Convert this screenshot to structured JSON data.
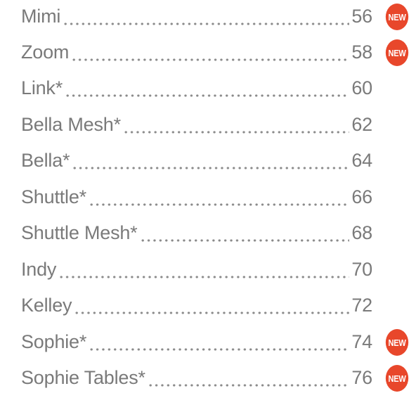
{
  "toc": {
    "badge_label": "NEW",
    "badge_color": "#e8472b",
    "text_color": "#7a7a7a",
    "entries": [
      {
        "name": "Mimi",
        "page": "56",
        "is_new": true
      },
      {
        "name": "Zoom",
        "page": "58",
        "is_new": true
      },
      {
        "name": "Link*",
        "page": "60",
        "is_new": false
      },
      {
        "name": "Bella Mesh*",
        "page": "62",
        "is_new": false
      },
      {
        "name": "Bella*",
        "page": "64",
        "is_new": false
      },
      {
        "name": "Shuttle*",
        "page": "66",
        "is_new": false
      },
      {
        "name": "Shuttle Mesh*",
        "page": "68",
        "is_new": false
      },
      {
        "name": "Indy",
        "page": "70",
        "is_new": false
      },
      {
        "name": "Kelley",
        "page": "72",
        "is_new": false
      },
      {
        "name": "Sophie*",
        "page": "74",
        "is_new": true
      },
      {
        "name": "Sophie Tables*",
        "page": "76",
        "is_new": true
      }
    ]
  }
}
